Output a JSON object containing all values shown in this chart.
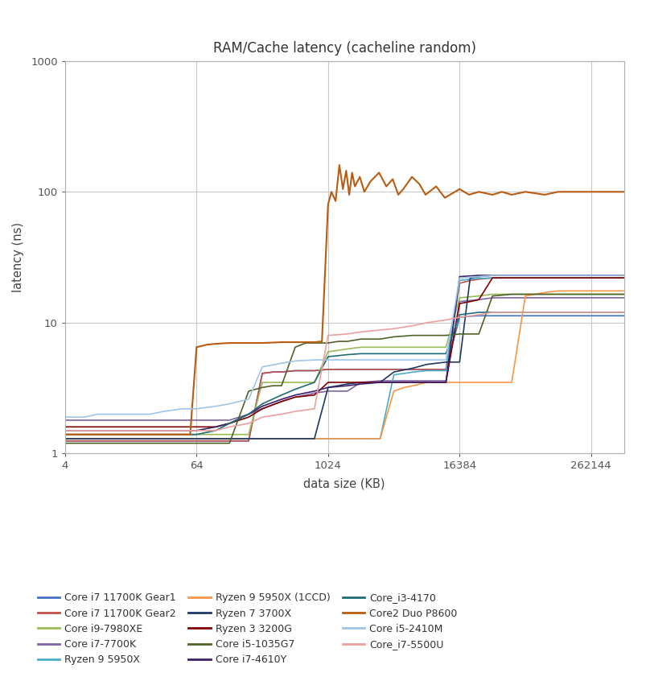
{
  "title": "RAM/Cache latency (cacheline random)",
  "xlabel": "data size (KB)",
  "ylabel": "latency (ns)",
  "xticks": [
    4,
    64,
    1024,
    16384,
    262144
  ],
  "yticks": [
    1,
    10,
    100,
    1000
  ],
  "background_color": "#ffffff",
  "grid_color": "#c8c8c8",
  "series": [
    {
      "label": "Core i7 11700K Gear1",
      "color": "#4472c4",
      "linewidth": 1.2,
      "data_x": [
        4,
        6,
        8,
        12,
        16,
        24,
        32,
        48,
        64,
        96,
        128,
        192,
        256,
        320,
        384,
        512,
        640,
        768,
        1024,
        1280,
        1536,
        2048,
        3072,
        4096,
        6144,
        8192,
        12288,
        16384,
        20480,
        24576,
        32768,
        49152,
        65536,
        98304,
        131072,
        196608,
        262144,
        393216,
        524288
      ],
      "data_y": [
        1.25,
        1.25,
        1.25,
        1.25,
        1.25,
        1.25,
        1.25,
        1.25,
        1.25,
        1.25,
        1.25,
        1.25,
        4.1,
        4.2,
        4.2,
        4.3,
        4.3,
        4.3,
        4.4,
        4.4,
        4.4,
        4.4,
        4.4,
        4.4,
        4.4,
        4.4,
        4.4,
        11.0,
        11.2,
        11.3,
        11.3,
        11.3,
        11.3,
        11.3,
        11.3,
        11.3,
        11.3,
        11.3,
        11.3
      ]
    },
    {
      "label": "Core i7 11700K Gear2",
      "color": "#c0504d",
      "linewidth": 1.2,
      "data_x": [
        4,
        6,
        8,
        12,
        16,
        24,
        32,
        48,
        64,
        96,
        128,
        192,
        256,
        320,
        384,
        512,
        640,
        768,
        1024,
        1280,
        1536,
        2048,
        3072,
        4096,
        6144,
        8192,
        12288,
        16384,
        20480,
        24576,
        32768,
        49152,
        65536,
        98304,
        131072,
        196608,
        262144,
        393216,
        524288
      ],
      "data_y": [
        1.25,
        1.25,
        1.25,
        1.25,
        1.25,
        1.25,
        1.25,
        1.25,
        1.25,
        1.25,
        1.25,
        1.25,
        4.1,
        4.2,
        4.2,
        4.3,
        4.3,
        4.3,
        4.4,
        4.4,
        4.4,
        4.4,
        4.4,
        4.4,
        4.4,
        4.4,
        4.4,
        20.0,
        21.0,
        21.5,
        22.0,
        22.0,
        22.0,
        22.0,
        22.0,
        22.0,
        22.0,
        22.0,
        22.0
      ]
    },
    {
      "label": "Core i9-7980XE",
      "color": "#9bbb59",
      "linewidth": 1.2,
      "data_x": [
        4,
        6,
        8,
        12,
        16,
        24,
        32,
        48,
        64,
        96,
        128,
        192,
        256,
        384,
        512,
        768,
        1024,
        1536,
        2048,
        3072,
        4096,
        6144,
        8192,
        12288,
        16384,
        24576,
        32768,
        49152,
        65536,
        98304,
        131072,
        196608,
        262144,
        393216,
        524288
      ],
      "data_y": [
        1.4,
        1.4,
        1.4,
        1.4,
        1.4,
        1.4,
        1.4,
        1.4,
        1.4,
        1.4,
        1.4,
        1.4,
        3.5,
        3.5,
        3.5,
        3.5,
        6.0,
        6.3,
        6.5,
        6.5,
        6.5,
        6.5,
        6.5,
        6.5,
        15.5,
        16.0,
        16.5,
        16.5,
        16.5,
        16.5,
        16.5,
        16.5,
        16.5,
        16.5,
        16.5
      ]
    },
    {
      "label": "Core i7-7700K",
      "color": "#8064a2",
      "linewidth": 1.2,
      "data_x": [
        4,
        6,
        8,
        12,
        16,
        24,
        32,
        48,
        64,
        96,
        128,
        192,
        256,
        384,
        512,
        640,
        768,
        1024,
        1536,
        2048,
        3072,
        4096,
        6144,
        8192,
        12288,
        16384,
        24576,
        32768,
        49152,
        65536,
        98304,
        131072,
        196608,
        262144,
        393216,
        524288
      ],
      "data_y": [
        1.8,
        1.8,
        1.8,
        1.8,
        1.8,
        1.8,
        1.8,
        1.8,
        1.8,
        1.8,
        1.8,
        2.0,
        2.2,
        2.5,
        2.7,
        2.8,
        2.9,
        3.0,
        3.0,
        3.5,
        3.6,
        3.6,
        3.6,
        3.6,
        3.6,
        14.5,
        15.0,
        15.5,
        15.5,
        15.5,
        15.5,
        15.5,
        15.5,
        15.5,
        15.5,
        15.5
      ]
    },
    {
      "label": "Ryzen 9 5950X",
      "color": "#4bacc6",
      "linewidth": 1.2,
      "data_x": [
        4,
        6,
        8,
        12,
        16,
        24,
        32,
        48,
        64,
        96,
        128,
        192,
        256,
        384,
        512,
        768,
        1024,
        1536,
        2048,
        3072,
        4096,
        5120,
        6144,
        8192,
        12288,
        16384,
        20480,
        24576,
        32768,
        49152,
        65536,
        98304,
        131072,
        196608,
        262144,
        393216,
        524288
      ],
      "data_y": [
        1.3,
        1.3,
        1.3,
        1.3,
        1.3,
        1.3,
        1.3,
        1.3,
        1.3,
        1.3,
        1.3,
        1.3,
        1.3,
        1.3,
        1.3,
        1.3,
        1.3,
        1.3,
        1.3,
        1.3,
        4.0,
        4.1,
        4.2,
        4.3,
        4.3,
        21.0,
        21.5,
        21.8,
        22.0,
        22.0,
        22.0,
        22.0,
        22.0,
        22.0,
        22.0,
        22.0,
        22.0
      ]
    },
    {
      "label": "Ryzen 9 5950X (1CCD)",
      "color": "#f79646",
      "linewidth": 1.2,
      "data_x": [
        4,
        6,
        8,
        12,
        16,
        24,
        32,
        48,
        64,
        96,
        128,
        192,
        256,
        384,
        512,
        768,
        1024,
        1536,
        2048,
        3072,
        4096,
        5120,
        6144,
        8192,
        12288,
        16384,
        20480,
        24576,
        32768,
        49152,
        65536,
        98304,
        131072,
        196608,
        262144,
        393216,
        524288
      ],
      "data_y": [
        1.3,
        1.3,
        1.3,
        1.3,
        1.3,
        1.3,
        1.3,
        1.3,
        1.3,
        1.3,
        1.3,
        1.3,
        1.3,
        1.3,
        1.3,
        1.3,
        1.3,
        1.3,
        1.3,
        1.3,
        3.0,
        3.2,
        3.3,
        3.5,
        3.5,
        3.5,
        3.5,
        3.5,
        3.5,
        3.5,
        16.0,
        17.0,
        17.5,
        17.5,
        17.5,
        17.5,
        17.5
      ]
    },
    {
      "label": "Ryzen 7 3700X",
      "color": "#1f3864",
      "linewidth": 1.2,
      "data_x": [
        4,
        6,
        8,
        12,
        16,
        24,
        32,
        48,
        64,
        96,
        128,
        192,
        256,
        384,
        512,
        768,
        1024,
        1536,
        2048,
        3072,
        4096,
        6144,
        8192,
        12288,
        16384,
        20480,
        24576,
        32768,
        49152,
        65536,
        98304,
        131072,
        196608,
        262144,
        393216,
        524288
      ],
      "data_y": [
        1.3,
        1.3,
        1.3,
        1.3,
        1.3,
        1.3,
        1.3,
        1.3,
        1.3,
        1.3,
        1.3,
        1.3,
        1.3,
        1.3,
        1.3,
        1.3,
        3.2,
        3.4,
        3.5,
        3.5,
        4.2,
        4.5,
        4.8,
        5.0,
        5.0,
        22.0,
        22.5,
        23.0,
        23.0,
        23.0,
        23.0,
        23.0,
        23.0,
        23.0,
        23.0,
        23.0
      ]
    },
    {
      "label": "Ryzen 3 3200G",
      "color": "#7f0000",
      "linewidth": 1.2,
      "data_x": [
        4,
        6,
        8,
        12,
        16,
        24,
        32,
        48,
        64,
        96,
        128,
        192,
        256,
        384,
        512,
        768,
        1024,
        1536,
        2048,
        3072,
        4096,
        6144,
        8192,
        12288,
        16384,
        20480,
        24576,
        32768,
        49152,
        65536,
        98304,
        131072,
        196608,
        262144,
        393216,
        524288
      ],
      "data_y": [
        1.6,
        1.6,
        1.6,
        1.6,
        1.6,
        1.6,
        1.6,
        1.6,
        1.6,
        1.6,
        1.7,
        1.9,
        2.2,
        2.5,
        2.7,
        2.8,
        3.5,
        3.5,
        3.5,
        3.5,
        3.5,
        3.5,
        3.5,
        3.5,
        14.0,
        14.5,
        15.0,
        22.0,
        22.0,
        22.0,
        22.0,
        22.0,
        22.0,
        22.0,
        22.0,
        22.0
      ]
    },
    {
      "label": "Core i5-1035G7",
      "color": "#4f6228",
      "linewidth": 1.2,
      "data_x": [
        4,
        6,
        8,
        12,
        16,
        24,
        32,
        48,
        64,
        96,
        128,
        192,
        256,
        320,
        384,
        512,
        640,
        768,
        1024,
        1280,
        1536,
        2048,
        3072,
        4096,
        6144,
        8192,
        12288,
        16384,
        20480,
        24576,
        32768,
        49152,
        65536,
        98304,
        131072,
        196608,
        262144,
        393216,
        524288
      ],
      "data_y": [
        1.2,
        1.2,
        1.2,
        1.2,
        1.2,
        1.2,
        1.2,
        1.2,
        1.2,
        1.2,
        1.2,
        3.0,
        3.2,
        3.3,
        3.3,
        6.5,
        7.0,
        7.0,
        7.0,
        7.2,
        7.2,
        7.5,
        7.5,
        7.8,
        8.0,
        8.0,
        8.0,
        8.2,
        8.2,
        8.2,
        16.0,
        16.5,
        16.5,
        16.5,
        16.5,
        16.5,
        16.5,
        16.5,
        16.5
      ]
    },
    {
      "label": "Core i7-4610Y",
      "color": "#3b2068",
      "linewidth": 1.2,
      "data_x": [
        4,
        6,
        8,
        12,
        16,
        24,
        32,
        48,
        64,
        96,
        128,
        192,
        256,
        384,
        512,
        768,
        1024,
        1536,
        2048,
        3072,
        4096,
        6144,
        8192,
        12288,
        16384,
        24576,
        32768,
        49152,
        65536,
        98304,
        131072,
        196608,
        262144,
        393216,
        524288
      ],
      "data_y": [
        1.5,
        1.5,
        1.5,
        1.5,
        1.5,
        1.5,
        1.5,
        1.5,
        1.5,
        1.6,
        1.7,
        2.0,
        2.3,
        2.6,
        2.8,
        3.0,
        3.2,
        3.3,
        3.4,
        3.5,
        3.5,
        3.5,
        3.5,
        3.5,
        22.5,
        23.0,
        23.0,
        23.0,
        23.0,
        23.0,
        23.0,
        23.0,
        23.0,
        23.0,
        23.0
      ]
    },
    {
      "label": "Core_i3-4170",
      "color": "#1f6b75",
      "linewidth": 1.2,
      "data_x": [
        4,
        6,
        8,
        12,
        16,
        24,
        32,
        48,
        64,
        96,
        128,
        192,
        256,
        384,
        512,
        768,
        1024,
        1536,
        2048,
        3072,
        4096,
        6144,
        8192,
        12288,
        16384,
        24576,
        32768,
        49152,
        65536,
        98304,
        131072,
        196608,
        262144,
        393216,
        524288
      ],
      "data_y": [
        1.4,
        1.4,
        1.4,
        1.4,
        1.4,
        1.4,
        1.4,
        1.4,
        1.4,
        1.5,
        1.7,
        2.0,
        2.4,
        2.8,
        3.1,
        3.5,
        5.5,
        5.7,
        5.8,
        5.8,
        5.8,
        5.8,
        5.8,
        5.8,
        11.5,
        12.0,
        12.0,
        12.0,
        12.0,
        12.0,
        12.0,
        12.0,
        12.0,
        12.0,
        12.0
      ]
    },
    {
      "label": "Core2 Duo P8600",
      "color": "#b85c11",
      "linewidth": 1.5,
      "data_x": [
        4,
        8,
        16,
        32,
        48,
        56,
        64,
        80,
        96,
        128,
        192,
        256,
        384,
        512,
        768,
        900,
        1024,
        1100,
        1200,
        1300,
        1400,
        1500,
        1600,
        1700,
        1800,
        2000,
        2200,
        2500,
        3000,
        3500,
        4000,
        4500,
        5000,
        6000,
        7000,
        8000,
        10000,
        12000,
        16384,
        20000,
        24576,
        32768,
        40000,
        49152,
        65536,
        98304,
        131072,
        196608,
        262144,
        393216,
        524288
      ],
      "data_y": [
        1.4,
        1.4,
        1.4,
        1.4,
        1.4,
        1.4,
        6.5,
        6.8,
        6.9,
        7.0,
        7.0,
        7.0,
        7.1,
        7.1,
        7.1,
        7.2,
        80.0,
        100.0,
        85.0,
        160.0,
        105.0,
        145.0,
        95.0,
        140.0,
        110.0,
        130.0,
        100.0,
        120.0,
        140.0,
        110.0,
        125.0,
        95.0,
        105.0,
        130.0,
        115.0,
        95.0,
        110.0,
        90.0,
        105.0,
        95.0,
        100.0,
        95.0,
        100.0,
        95.0,
        100.0,
        95.0,
        100.0,
        100.0,
        100.0,
        100.0,
        100.0
      ]
    },
    {
      "label": "Core i5-2410M",
      "color": "#9fc6e7",
      "linewidth": 1.2,
      "data_x": [
        4,
        6,
        8,
        12,
        16,
        24,
        32,
        48,
        64,
        96,
        128,
        192,
        256,
        384,
        512,
        768,
        1024,
        1536,
        2048,
        3072,
        4096,
        6144,
        8192,
        12288,
        16384,
        24576,
        32768,
        49152,
        65536,
        98304,
        131072,
        196608,
        262144,
        393216,
        524288
      ],
      "data_y": [
        1.9,
        1.9,
        2.0,
        2.0,
        2.0,
        2.0,
        2.1,
        2.2,
        2.2,
        2.3,
        2.4,
        2.6,
        4.6,
        4.9,
        5.1,
        5.2,
        5.2,
        5.2,
        5.2,
        5.2,
        5.2,
        5.2,
        5.2,
        5.2,
        22.0,
        22.5,
        23.0,
        23.0,
        23.0,
        23.0,
        23.0,
        23.0,
        23.0,
        23.0,
        23.0
      ]
    },
    {
      "label": "Core_i7-5500U",
      "color": "#e8a0a0",
      "linewidth": 1.2,
      "data_x": [
        4,
        6,
        8,
        12,
        16,
        24,
        32,
        48,
        64,
        96,
        128,
        192,
        256,
        384,
        512,
        768,
        1024,
        1536,
        2048,
        3072,
        4096,
        6144,
        8192,
        12288,
        16384,
        24576,
        32768,
        49152,
        65536,
        98304,
        131072,
        196608,
        262144,
        393216,
        524288
      ],
      "data_y": [
        1.5,
        1.5,
        1.5,
        1.5,
        1.5,
        1.5,
        1.5,
        1.5,
        1.5,
        1.5,
        1.6,
        1.7,
        1.9,
        2.0,
        2.1,
        2.2,
        8.0,
        8.2,
        8.5,
        8.8,
        9.0,
        9.5,
        10.0,
        10.5,
        11.0,
        11.5,
        12.0,
        12.0,
        12.0,
        12.0,
        12.0,
        12.0,
        12.0,
        12.0,
        12.0
      ]
    }
  ],
  "legend_entries": [
    {
      "label": "Core i7 11700K Gear1",
      "color": "#4472c4"
    },
    {
      "label": "Core i7 11700K Gear2",
      "color": "#c0504d"
    },
    {
      "label": "Core i9-7980XE",
      "color": "#9bbb59"
    },
    {
      "label": "Core i7-7700K",
      "color": "#8064a2"
    },
    {
      "label": "Ryzen 9 5950X",
      "color": "#4bacc6"
    },
    {
      "label": "Ryzen 9 5950X (1CCD)",
      "color": "#f79646"
    },
    {
      "label": "Ryzen 7 3700X",
      "color": "#1f3864"
    },
    {
      "label": "Ryzen 3 3200G",
      "color": "#7f0000"
    },
    {
      "label": "Core i5-1035G7",
      "color": "#4f6228"
    },
    {
      "label": "Core i7-4610Y",
      "color": "#3b2068"
    },
    {
      "label": "Core_i3-4170",
      "color": "#1f6b75"
    },
    {
      "label": "Core2 Duo P8600",
      "color": "#b85c11"
    },
    {
      "label": "Core i5-2410M",
      "color": "#9fc6e7"
    },
    {
      "label": "Core_i7-5500U",
      "color": "#e8a0a0"
    }
  ]
}
